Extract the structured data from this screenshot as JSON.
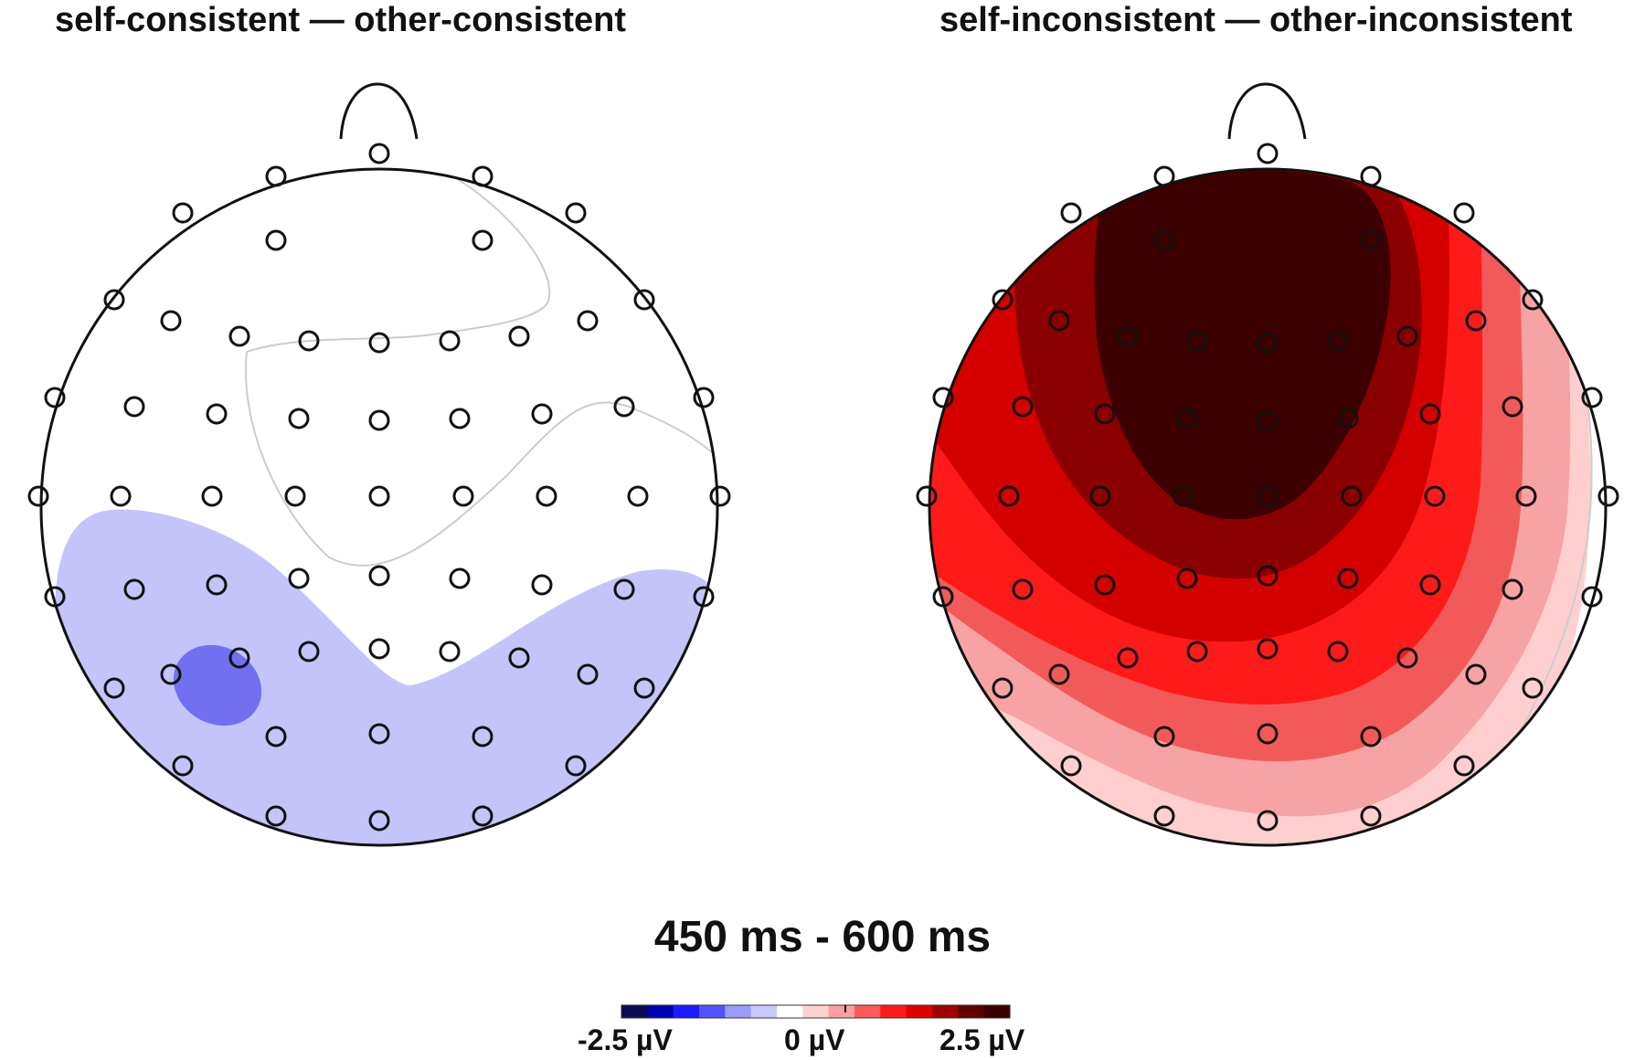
{
  "panels": {
    "left": {
      "title": "self-consistent — other-consistent"
    },
    "right": {
      "title": "self-inconsistent — other-inconsistent"
    }
  },
  "time_window": "450 ms - 600 ms",
  "colorbar": {
    "min_label": "-2.5 µV",
    "zero_label": "0 µV",
    "max_label": "2.5 µV",
    "range_uV": [
      -2.5,
      2.5
    ],
    "colors": [
      "#0a0a55",
      "#0000b4",
      "#1a1aff",
      "#5252ff",
      "#9a9aff",
      "#c8c8ff",
      "#ffffff",
      "#ffd0d0",
      "#ff9e9e",
      "#ff5a5a",
      "#ff1a1a",
      "#e00000",
      "#a00000",
      "#600000",
      "#3a0000"
    ]
  },
  "palette": {
    "outline": "#111111",
    "neg_light": "#c4c4fb",
    "neg_mid": "#7070f0",
    "pos_faint": "#ffcfcf",
    "pos_light": "#f7a3a3",
    "pos_mid": "#f25a5a",
    "pos_strong": "#ff1a1a",
    "pos_deep": "#d40000",
    "pos_darker": "#8a0000",
    "pos_darkest": "#3d0000"
  }
}
